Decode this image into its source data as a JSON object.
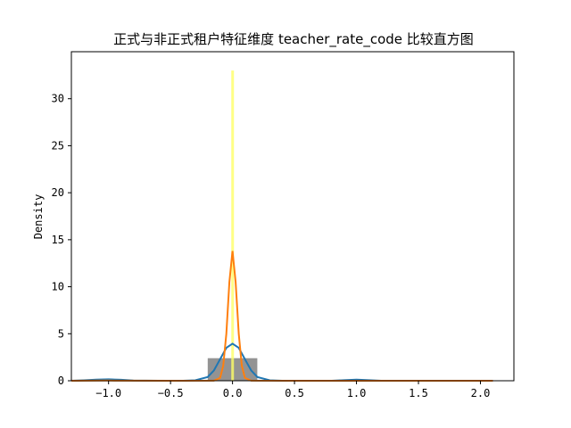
{
  "chart_data": {
    "type": "bar",
    "title": "正式与非正式租户特征维度 teacher_rate_code 比较直方图",
    "xlabel": "",
    "ylabel": "Density",
    "xlim": [
      -1.3,
      2.27
    ],
    "ylim": [
      0,
      35
    ],
    "grid": false,
    "x_ticks": [
      -1.0,
      -0.5,
      0.0,
      0.5,
      1.0,
      1.5,
      2.0
    ],
    "x_tick_labels": [
      "−1.0",
      "−0.5",
      "0.0",
      "0.5",
      "1.0",
      "1.5",
      "2.0"
    ],
    "y_ticks": [
      0,
      5,
      10,
      15,
      20,
      25,
      30
    ],
    "y_tick_labels": [
      "0",
      "5",
      "10",
      "15",
      "20",
      "25",
      "30"
    ],
    "histograms": [
      {
        "color": "#808080",
        "opacity": 0.85,
        "bins": [
          [
            -0.2,
            0.2
          ]
        ],
        "values": [
          2.4
        ]
      },
      {
        "color": "#ffff66",
        "opacity": 0.8,
        "bins": [
          [
            -0.01,
            0.01
          ]
        ],
        "values": [
          33
        ]
      }
    ],
    "series": [
      {
        "kind": "kde",
        "color": "#1f77b4",
        "x": [
          -1.3,
          -1.2,
          -1.1,
          -1.0,
          -0.9,
          -0.8,
          -0.6,
          -0.4,
          -0.3,
          -0.2,
          -0.15,
          -0.1,
          -0.05,
          0.0,
          0.05,
          0.1,
          0.15,
          0.2,
          0.3,
          0.4,
          0.6,
          0.8,
          0.9,
          1.0,
          1.1,
          1.2,
          1.4,
          1.6,
          1.8,
          2.0,
          2.1
        ],
        "y": [
          0.0,
          0.05,
          0.12,
          0.15,
          0.1,
          0.03,
          0.0,
          0.0,
          0.05,
          0.4,
          1.1,
          2.3,
          3.5,
          3.95,
          3.5,
          2.3,
          1.1,
          0.4,
          0.05,
          0.0,
          0.0,
          0.0,
          0.06,
          0.12,
          0.06,
          0.0,
          0.0,
          0.0,
          0.0,
          0.0,
          0.0
        ]
      },
      {
        "kind": "kde",
        "color": "#ff7f0e",
        "x": [
          -1.3,
          -1.0,
          -0.5,
          -0.15,
          -0.1,
          -0.075,
          -0.05,
          -0.025,
          0.0,
          0.025,
          0.05,
          0.075,
          0.1,
          0.15,
          0.5,
          1.0,
          1.5,
          2.1
        ],
        "y": [
          0.0,
          0.02,
          0.0,
          0.01,
          0.3,
          1.6,
          5.0,
          10.5,
          13.8,
          10.5,
          5.0,
          1.6,
          0.3,
          0.01,
          0.0,
          0.0,
          0.0,
          0.0
        ]
      }
    ]
  }
}
